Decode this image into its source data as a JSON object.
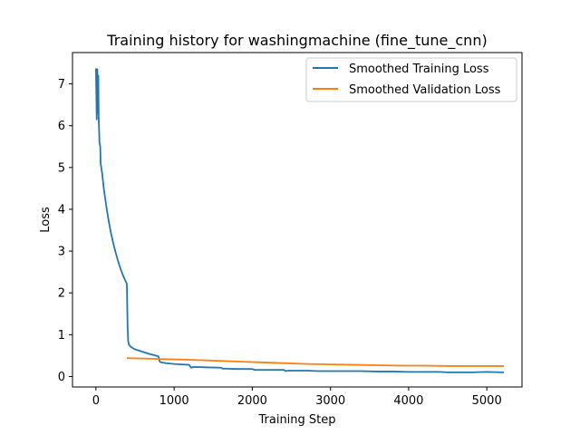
{
  "chart_data": {
    "type": "line",
    "title": "Training history for washingmachine (fine_tune_cnn)",
    "xlabel": "Training Step",
    "ylabel": "Loss",
    "xlim": [
      -300,
      5450
    ],
    "ylim": [
      -0.25,
      7.75
    ],
    "xticks": [
      0,
      1000,
      2000,
      3000,
      4000,
      5000
    ],
    "yticks": [
      0,
      1,
      2,
      3,
      4,
      5,
      6,
      7
    ],
    "grid": false,
    "legend_position": "top-right",
    "series": [
      {
        "name": "Smoothed Training Loss",
        "color": "#1f77b4",
        "points": [
          [
            0,
            7.37
          ],
          [
            10,
            6.15
          ],
          [
            18,
            7.35
          ],
          [
            25,
            6.3
          ],
          [
            30,
            7.2
          ],
          [
            35,
            6.2
          ],
          [
            45,
            5.6
          ],
          [
            55,
            5.5
          ],
          [
            60,
            5.1
          ],
          [
            80,
            4.85
          ],
          [
            100,
            4.5
          ],
          [
            130,
            4.1
          ],
          [
            160,
            3.75
          ],
          [
            190,
            3.45
          ],
          [
            220,
            3.2
          ],
          [
            250,
            2.98
          ],
          [
            280,
            2.78
          ],
          [
            310,
            2.6
          ],
          [
            340,
            2.45
          ],
          [
            370,
            2.32
          ],
          [
            395,
            2.22
          ],
          [
            405,
            1.2
          ],
          [
            412,
            0.85
          ],
          [
            420,
            0.77
          ],
          [
            440,
            0.72
          ],
          [
            470,
            0.68
          ],
          [
            500,
            0.65
          ],
          [
            550,
            0.62
          ],
          [
            600,
            0.59
          ],
          [
            650,
            0.56
          ],
          [
            700,
            0.53
          ],
          [
            750,
            0.51
          ],
          [
            800,
            0.48
          ],
          [
            815,
            0.36
          ],
          [
            830,
            0.34
          ],
          [
            900,
            0.32
          ],
          [
            1000,
            0.3
          ],
          [
            1100,
            0.29
          ],
          [
            1190,
            0.28
          ],
          [
            1220,
            0.21
          ],
          [
            1250,
            0.23
          ],
          [
            1400,
            0.22
          ],
          [
            1600,
            0.21
          ],
          [
            1620,
            0.19
          ],
          [
            1800,
            0.18
          ],
          [
            2000,
            0.18
          ],
          [
            2030,
            0.16
          ],
          [
            2200,
            0.16
          ],
          [
            2400,
            0.16
          ],
          [
            2430,
            0.13
          ],
          [
            2460,
            0.14
          ],
          [
            2700,
            0.14
          ],
          [
            2850,
            0.13
          ],
          [
            3000,
            0.13
          ],
          [
            3200,
            0.13
          ],
          [
            3400,
            0.13
          ],
          [
            3600,
            0.12
          ],
          [
            3800,
            0.12
          ],
          [
            4000,
            0.11
          ],
          [
            4200,
            0.11
          ],
          [
            4400,
            0.11
          ],
          [
            4500,
            0.1
          ],
          [
            4600,
            0.1
          ],
          [
            4800,
            0.1
          ],
          [
            5000,
            0.11
          ],
          [
            5220,
            0.1
          ]
        ]
      },
      {
        "name": "Smoothed Validation Loss",
        "color": "#ff7f0e",
        "points": [
          [
            395,
            0.44
          ],
          [
            600,
            0.43
          ],
          [
            800,
            0.42
          ],
          [
            1000,
            0.41
          ],
          [
            1200,
            0.4
          ],
          [
            1500,
            0.38
          ],
          [
            1800,
            0.36
          ],
          [
            2100,
            0.34
          ],
          [
            2400,
            0.32
          ],
          [
            2700,
            0.3
          ],
          [
            3000,
            0.29
          ],
          [
            3300,
            0.28
          ],
          [
            3600,
            0.27
          ],
          [
            3900,
            0.26
          ],
          [
            4200,
            0.26
          ],
          [
            4500,
            0.25
          ],
          [
            4800,
            0.25
          ],
          [
            5220,
            0.25
          ]
        ]
      }
    ]
  }
}
